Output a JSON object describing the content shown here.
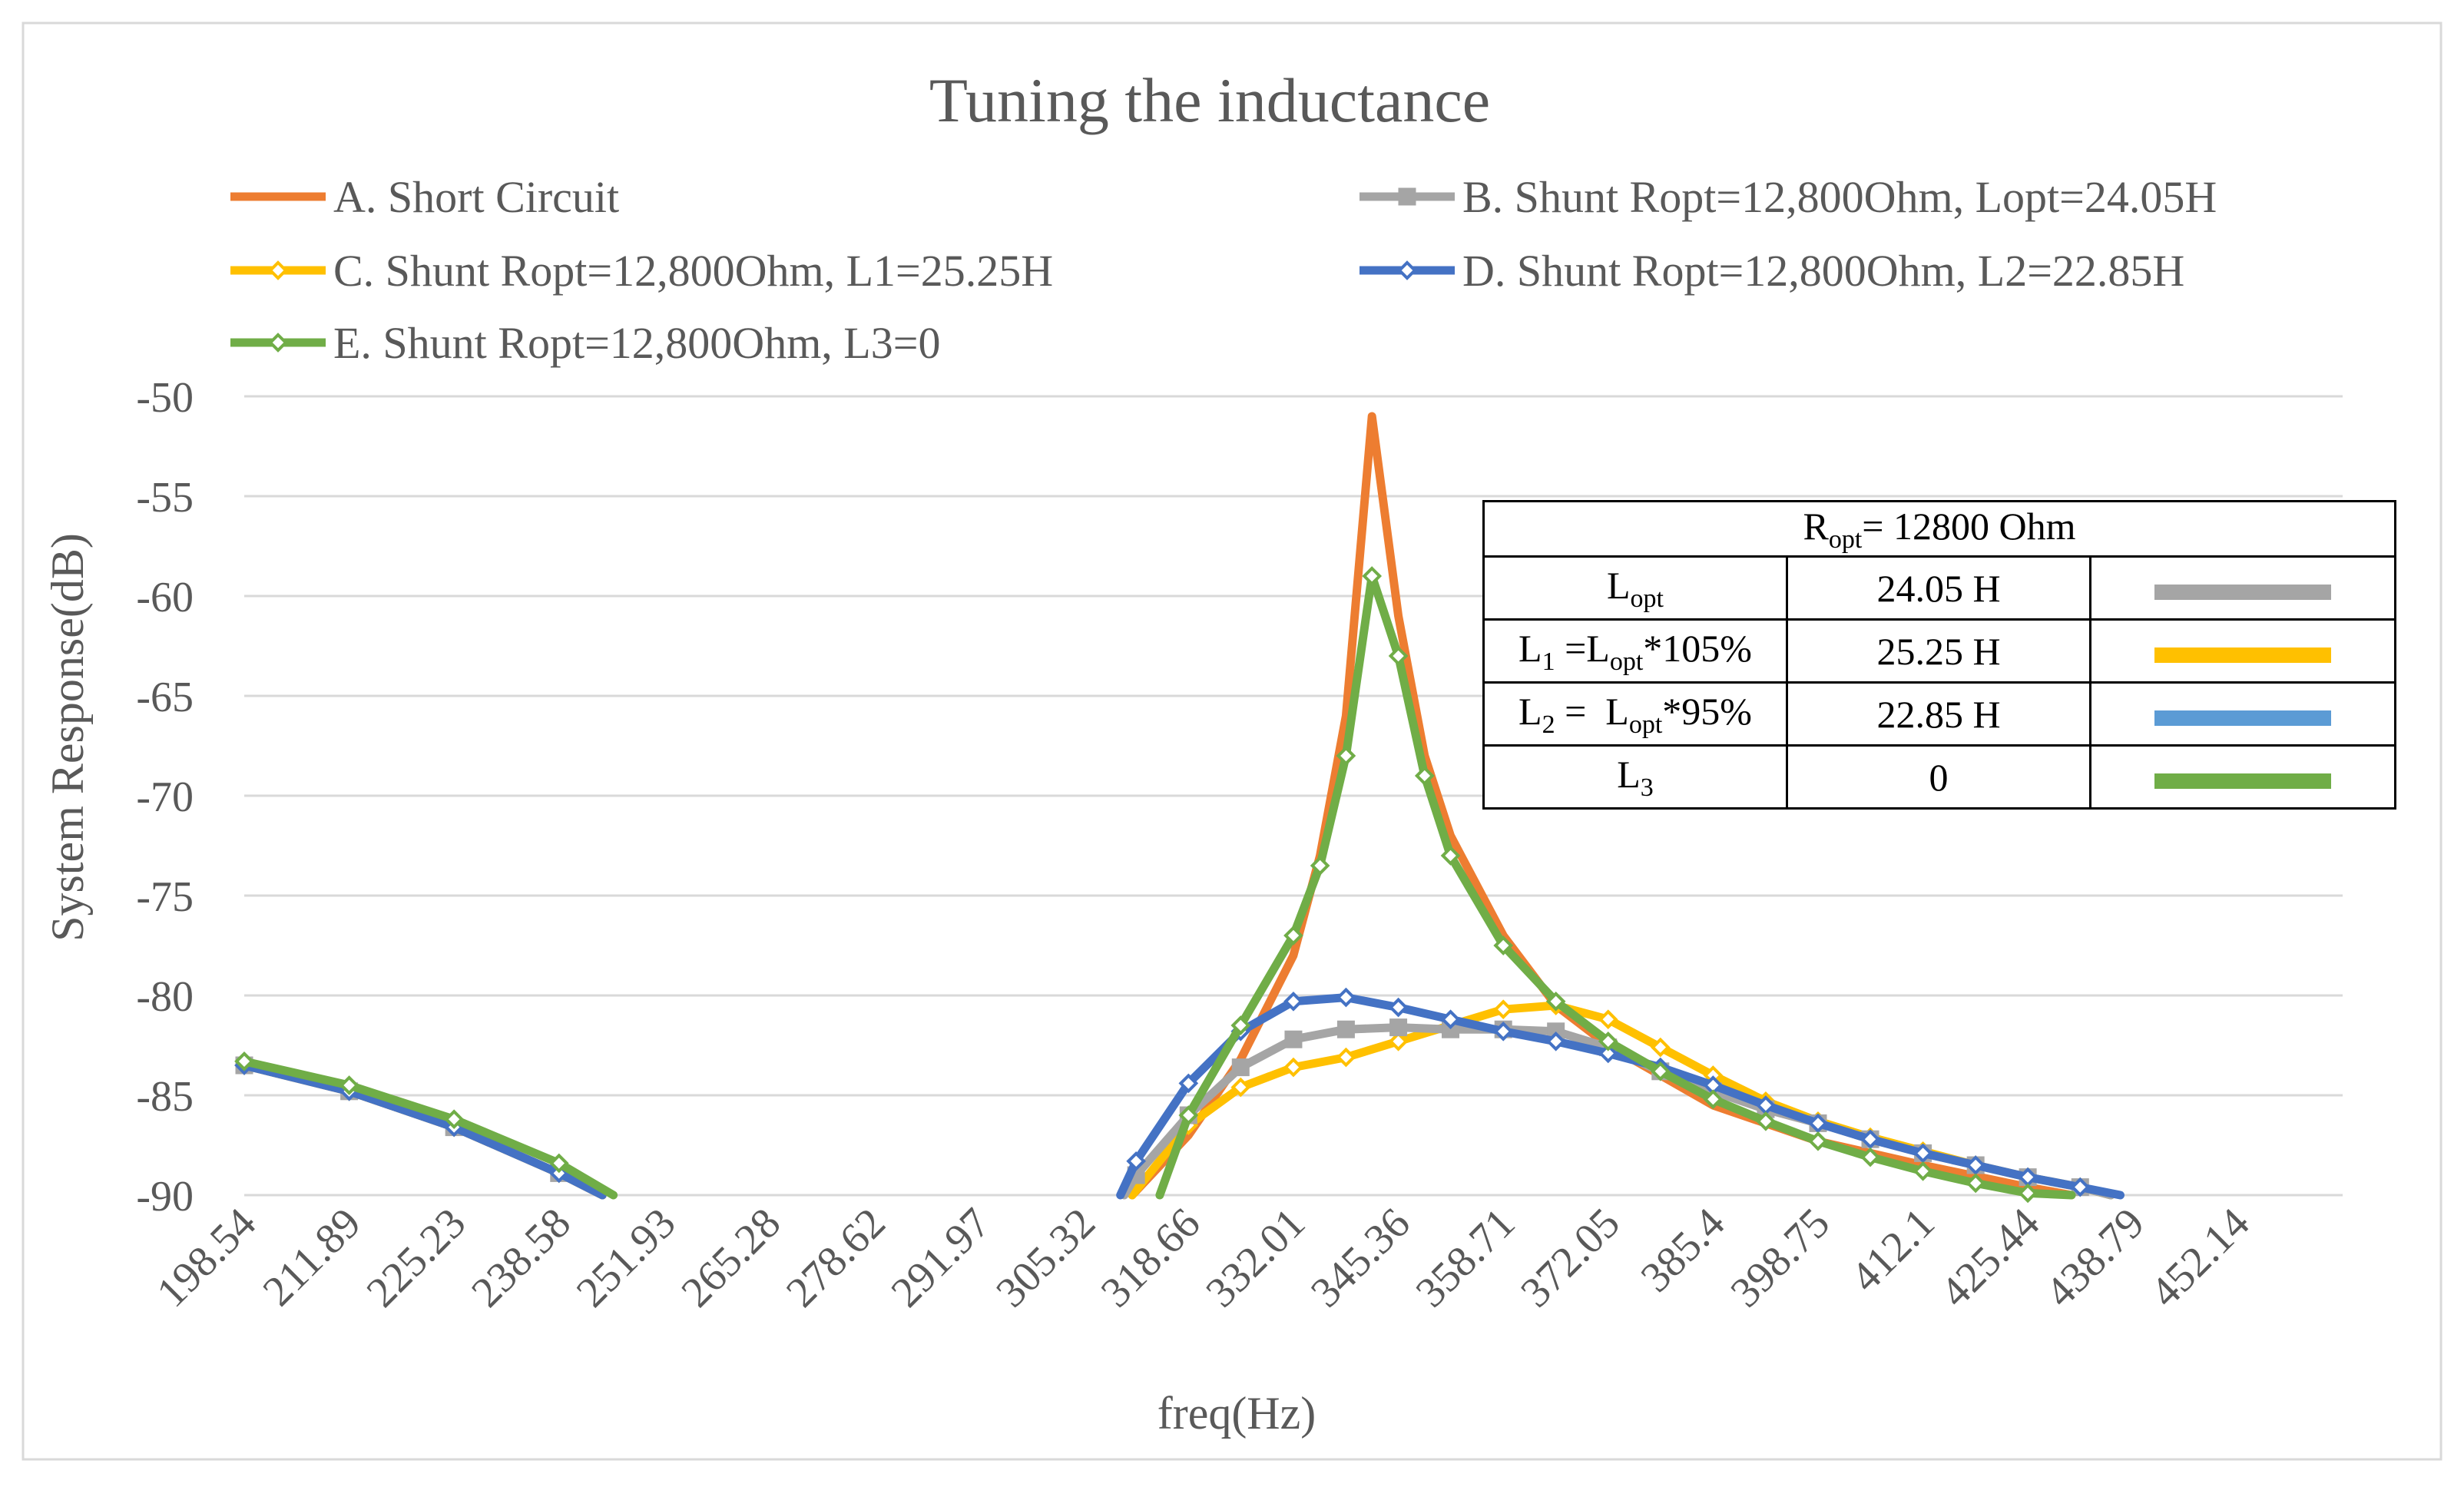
{
  "chart_data": {
    "type": "line",
    "title": "Tuning the inductance",
    "xlabel": "freq(Hz)",
    "ylabel": "System Response(dB)",
    "ylim": [
      -90,
      -50
    ],
    "xlim": [
      198.54,
      465.49
    ],
    "y_ticks": [
      -50,
      -55,
      -60,
      -65,
      -70,
      -75,
      -80,
      -85,
      -90
    ],
    "x_ticks": [
      "198.54",
      "211.89",
      "225.23",
      "238.58",
      "251.93",
      "265.28",
      "278.62",
      "291.97",
      "305.32",
      "318.66",
      "332.01",
      "345.36",
      "358.71",
      "372.05",
      "385.4",
      "398.75",
      "412.1",
      "425.44",
      "438.79",
      "452.14"
    ],
    "grid": "horizontal",
    "legend_position": "top",
    "series": [
      {
        "name": "A. Short Circuit",
        "color": "#ED7D31",
        "marker": "none",
        "points": [
          [
            198.54,
            -83.5
          ],
          [
            211.89,
            -84.8
          ],
          [
            225.23,
            -86.6
          ],
          [
            238.58,
            -88.9
          ],
          [
            244.1,
            -90
          ],
          [
            311.5,
            -90
          ],
          [
            318.66,
            -87
          ],
          [
            325.3,
            -83.2
          ],
          [
            332.01,
            -78
          ],
          [
            335.4,
            -73
          ],
          [
            338.7,
            -66
          ],
          [
            342.0,
            -51
          ],
          [
            345.36,
            -61
          ],
          [
            348.7,
            -68
          ],
          [
            352.0,
            -72
          ],
          [
            358.71,
            -77
          ],
          [
            365.4,
            -80.5
          ],
          [
            372.05,
            -82.5
          ],
          [
            385.4,
            -85.5
          ],
          [
            398.75,
            -87.3
          ],
          [
            412.1,
            -88.5
          ],
          [
            425.44,
            -89.6
          ],
          [
            431.0,
            -90
          ]
        ]
      },
      {
        "name": "B. Shunt Ropt=12,800Ohm, Lopt=24.05H",
        "color": "#A5A5A5",
        "marker": "square",
        "points": [
          [
            198.54,
            -83.5
          ],
          [
            211.89,
            -84.8
          ],
          [
            225.23,
            -86.6
          ],
          [
            238.58,
            -88.9
          ],
          [
            244.1,
            -90
          ],
          [
            310.5,
            -90
          ],
          [
            312.0,
            -89
          ],
          [
            318.66,
            -86
          ],
          [
            325.3,
            -83.6
          ],
          [
            332.01,
            -82.2
          ],
          [
            338.7,
            -81.7
          ],
          [
            345.36,
            -81.6
          ],
          [
            352.0,
            -81.7
          ],
          [
            358.71,
            -81.7
          ],
          [
            365.4,
            -81.8
          ],
          [
            372.05,
            -82.6
          ],
          [
            378.7,
            -83.8
          ],
          [
            385.4,
            -84.8
          ],
          [
            392.1,
            -85.7
          ],
          [
            398.75,
            -86.4
          ],
          [
            405.4,
            -87.2
          ],
          [
            412.1,
            -87.9
          ],
          [
            418.8,
            -88.5
          ],
          [
            425.44,
            -89.1
          ],
          [
            432.1,
            -89.6
          ],
          [
            436.0,
            -90
          ]
        ]
      },
      {
        "name": "C. Shunt Ropt=12,800Ohm, L1=25.25H",
        "color": "#FFC000",
        "marker": "diamond",
        "points": [
          [
            198.54,
            -83.5
          ],
          [
            211.89,
            -84.8
          ],
          [
            225.23,
            -86.6
          ],
          [
            238.58,
            -88.9
          ],
          [
            244.1,
            -90
          ],
          [
            311.5,
            -90
          ],
          [
            318.66,
            -86.5
          ],
          [
            325.3,
            -84.6
          ],
          [
            332.01,
            -83.6
          ],
          [
            338.7,
            -83.1
          ],
          [
            345.36,
            -82.3
          ],
          [
            352.0,
            -81.5
          ],
          [
            358.71,
            -80.7
          ],
          [
            365.4,
            -80.5
          ],
          [
            372.05,
            -81.2
          ],
          [
            378.7,
            -82.6
          ],
          [
            385.4,
            -84
          ],
          [
            392.1,
            -85.3
          ],
          [
            398.75,
            -86.3
          ],
          [
            405.4,
            -87.1
          ],
          [
            412.1,
            -87.8
          ],
          [
            418.8,
            -88.5
          ],
          [
            425.44,
            -89.1
          ],
          [
            432.1,
            -89.6
          ],
          [
            436.0,
            -90
          ]
        ]
      },
      {
        "name": "D. Shunt Ropt=12,800Ohm, L2=22.85H",
        "color": "#4472C4",
        "marker": "diamond",
        "points": [
          [
            198.54,
            -83.5
          ],
          [
            211.89,
            -84.8
          ],
          [
            225.23,
            -86.6
          ],
          [
            238.58,
            -88.9
          ],
          [
            244.1,
            -90
          ],
          [
            310.0,
            -90
          ],
          [
            312.0,
            -88.3
          ],
          [
            318.66,
            -84.4
          ],
          [
            325.3,
            -81.8
          ],
          [
            332.01,
            -80.3
          ],
          [
            338.7,
            -80.1
          ],
          [
            345.36,
            -80.6
          ],
          [
            352.0,
            -81.2
          ],
          [
            358.71,
            -81.8
          ],
          [
            365.4,
            -82.3
          ],
          [
            372.05,
            -82.9
          ],
          [
            378.7,
            -83.6
          ],
          [
            385.4,
            -84.5
          ],
          [
            392.1,
            -85.5
          ],
          [
            398.75,
            -86.4
          ],
          [
            405.4,
            -87.2
          ],
          [
            412.1,
            -87.9
          ],
          [
            418.8,
            -88.5
          ],
          [
            425.44,
            -89.1
          ],
          [
            432.1,
            -89.6
          ],
          [
            437.2,
            -90
          ],
          [
            441.0,
            -90
          ]
        ]
      },
      {
        "name": "E. Shunt Ropt=12,800Ohm, L3=0",
        "color": "#70AD47",
        "marker": "diamond",
        "points": [
          [
            198.54,
            -83.3
          ],
          [
            211.89,
            -84.5
          ],
          [
            225.23,
            -86.2
          ],
          [
            238.58,
            -88.4
          ],
          [
            245.5,
            -90
          ],
          [
            315.0,
            -90
          ],
          [
            318.66,
            -86
          ],
          [
            325.3,
            -81.5
          ],
          [
            332.01,
            -77
          ],
          [
            335.4,
            -73.5
          ],
          [
            338.7,
            -68
          ],
          [
            342.0,
            -59
          ],
          [
            345.36,
            -63
          ],
          [
            348.7,
            -69
          ],
          [
            352.0,
            -73
          ],
          [
            358.71,
            -77.5
          ],
          [
            365.4,
            -80.3
          ],
          [
            372.05,
            -82.3
          ],
          [
            378.7,
            -83.8
          ],
          [
            385.4,
            -85.2
          ],
          [
            392.1,
            -86.3
          ],
          [
            398.75,
            -87.3
          ],
          [
            405.4,
            -88.1
          ],
          [
            412.1,
            -88.8
          ],
          [
            418.8,
            -89.4
          ],
          [
            425.44,
            -89.9
          ],
          [
            431.0,
            -90
          ]
        ]
      }
    ],
    "legend_items": [
      {
        "label": "A. Short Circuit",
        "color": "#ED7D31",
        "marker": "none"
      },
      {
        "label": "B. Shunt Ropt=12,800Ohm, Lopt=24.05H",
        "color": "#A5A5A5",
        "marker": "square"
      },
      {
        "label": "C. Shunt Ropt=12,800Ohm, L1=25.25H",
        "color": "#FFC000",
        "marker": "diamond"
      },
      {
        "label": "D. Shunt Ropt=12,800Ohm, L2=22.85H",
        "color": "#4472C4",
        "marker": "diamond"
      },
      {
        "label": "E. Shunt Ropt=12,800Ohm, L3=0",
        "color": "#70AD47",
        "marker": "diamond"
      }
    ]
  },
  "table": {
    "header": {
      "main": "R",
      "sub": "opt",
      "rest": "= 12800 Ohm"
    },
    "rows": [
      {
        "label_main": "L",
        "label_sub": "opt",
        "label_rest": "",
        "value": "24.05 H",
        "color": "#A5A5A5"
      },
      {
        "label_main": "L",
        "label_sub": "1",
        "label_mid": " =L",
        "label_sub2": "opt",
        "label_rest": "*105%",
        "value": "25.25 H",
        "color": "#FFC000"
      },
      {
        "label_main": "L",
        "label_sub": "2",
        "label_mid": " =  L",
        "label_sub2": "opt",
        "label_rest": "*95%",
        "value": "22.85 H",
        "color": "#5B9BD5"
      },
      {
        "label_main": "L",
        "label_sub": "3",
        "label_rest": "",
        "value": "0",
        "color": "#70AD47"
      }
    ]
  }
}
